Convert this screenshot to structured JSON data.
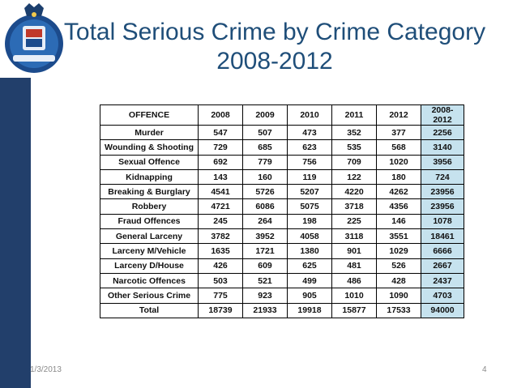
{
  "slide": {
    "title_line1": "Total Serious Crime by Crime Category",
    "title_line2": "2008-2012",
    "date": "1/3/2013",
    "page": "4"
  },
  "colors": {
    "title": "#1f4e79",
    "sidebar": "#223f6b",
    "total_col": "#c6e2ee"
  },
  "table": {
    "headers": [
      "OFFENCE",
      "2008",
      "2009",
      "2010",
      "2011",
      "2012",
      "2008-2012"
    ],
    "rows": [
      [
        "Murder",
        "547",
        "507",
        "473",
        "352",
        "377",
        "2256"
      ],
      [
        "Wounding & Shooting",
        "729",
        "685",
        "623",
        "535",
        "568",
        "3140"
      ],
      [
        "Sexual Offence",
        "692",
        "779",
        "756",
        "709",
        "1020",
        "3956"
      ],
      [
        "Kidnapping",
        "143",
        "160",
        "119",
        "122",
        "180",
        "724"
      ],
      [
        "Breaking & Burglary",
        "4541",
        "5726",
        "5207",
        "4220",
        "4262",
        "23956"
      ],
      [
        "Robbery",
        "4721",
        "6086",
        "5075",
        "3718",
        "4356",
        "23956"
      ],
      [
        "Fraud Offences",
        "245",
        "264",
        "198",
        "225",
        "146",
        "1078"
      ],
      [
        "General Larceny",
        "3782",
        "3952",
        "4058",
        "3118",
        "3551",
        "18461"
      ],
      [
        "Larceny M/Vehicle",
        "1635",
        "1721",
        "1380",
        "901",
        "1029",
        "6666"
      ],
      [
        "Larceny D/House",
        "426",
        "609",
        "625",
        "481",
        "526",
        "2667"
      ],
      [
        "Narcotic Offences",
        "503",
        "521",
        "499",
        "486",
        "428",
        "2437"
      ],
      [
        "Other Serious Crime",
        "775",
        "923",
        "905",
        "1010",
        "1090",
        "4703"
      ],
      [
        "Total",
        "18739",
        "21933",
        "19918",
        "15877",
        "17533",
        "94000"
      ]
    ]
  }
}
